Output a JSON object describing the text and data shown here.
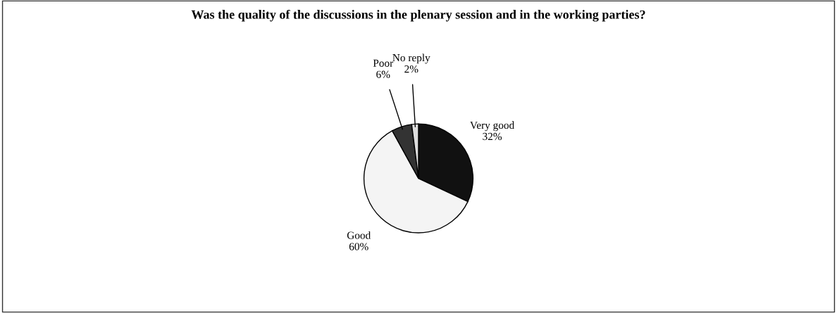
{
  "chart_data": {
    "type": "pie",
    "title": "Was the quality of the discussions in the plenary session and in the working parties?",
    "categories": [
      "Very good",
      "Good",
      "Poor",
      "No reply"
    ],
    "values": [
      32,
      60,
      6,
      2
    ],
    "value_labels": [
      "32%",
      "60%",
      "6%",
      "2%"
    ],
    "colors": [
      "#111111",
      "#f4f4f4",
      "#333333",
      "#dddddd"
    ],
    "legend": false
  }
}
